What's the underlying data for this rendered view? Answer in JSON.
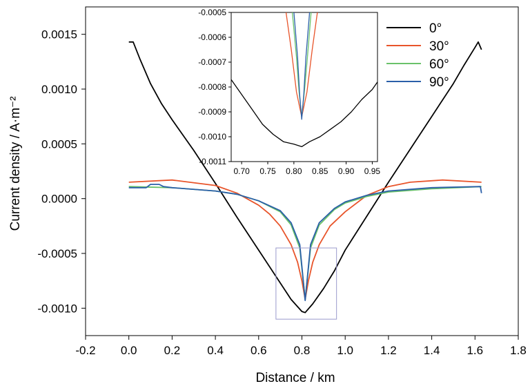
{
  "chart_data": [
    {
      "type": "line",
      "xlabel": "Distance / km",
      "ylabel": "Current density / A·m⁻²",
      "xlim": [
        -0.2,
        1.8
      ],
      "ylim": [
        -0.00125,
        0.00175
      ],
      "xticks": [
        "-0.2",
        "0.0",
        "0.2",
        "0.4",
        "0.6",
        "0.8",
        "1.0",
        "1.2",
        "1.4",
        "1.6",
        "1.8"
      ],
      "yticks": [
        "0.0015",
        "0.0010",
        "0.0005",
        "0.0000",
        "-0.0005",
        "-0.0010"
      ],
      "legend_position": "top-right",
      "grid": false,
      "series": [
        {
          "name": "0°",
          "color": "#000000",
          "x": [
            0.0,
            0.02,
            0.05,
            0.1,
            0.15,
            0.2,
            0.3,
            0.4,
            0.5,
            0.6,
            0.7,
            0.75,
            0.8,
            0.815,
            0.85,
            0.9,
            0.95,
            1.0,
            1.1,
            1.2,
            1.3,
            1.4,
            1.5,
            1.55,
            1.6,
            1.615,
            1.63
          ],
          "y": [
            0.00143,
            0.00143,
            0.00128,
            0.00105,
            0.00087,
            0.00072,
            0.00044,
            0.00014,
            -0.00017,
            -0.00047,
            -0.00077,
            -0.00092,
            -0.00103,
            -0.00104,
            -0.00096,
            -0.00082,
            -0.00066,
            -0.00047,
            -0.00016,
            0.00015,
            0.00045,
            0.00075,
            0.00105,
            0.00122,
            0.00138,
            0.00143,
            0.00136
          ]
        },
        {
          "name": "30°",
          "color": "#e8542a",
          "x": [
            0.0,
            0.2,
            0.4,
            0.5,
            0.6,
            0.65,
            0.7,
            0.75,
            0.78,
            0.8,
            0.815,
            0.83,
            0.85,
            0.88,
            0.93,
            1.0,
            1.1,
            1.2,
            1.3,
            1.45,
            1.63
          ],
          "y": [
            0.00015,
            0.00017,
            0.00012,
            5e-05,
            -6e-05,
            -0.00014,
            -0.00025,
            -0.00042,
            -0.00058,
            -0.00075,
            -0.00092,
            -0.00075,
            -0.00058,
            -0.00042,
            -0.00025,
            -0.00012,
            3e-05,
            0.00011,
            0.00015,
            0.00017,
            0.00015
          ]
        },
        {
          "name": "60°",
          "color": "#6ac26a",
          "x": [
            0.0,
            0.2,
            0.4,
            0.5,
            0.6,
            0.7,
            0.75,
            0.79,
            0.815,
            0.84,
            0.88,
            0.95,
            1.0,
            1.1,
            1.2,
            1.4,
            1.63
          ],
          "y": [
            0.00011,
            0.0001,
            7e-05,
            4e-05,
            -2e-05,
            -0.00012,
            -0.00024,
            -0.00045,
            -0.00092,
            -0.00045,
            -0.00024,
            -0.0001,
            -4e-05,
            2e-05,
            6e-05,
            9e-05,
            0.00011
          ]
        },
        {
          "name": "90°",
          "color": "#2a5fa8",
          "x": [
            0.0,
            0.08,
            0.1,
            0.12,
            0.14,
            0.16,
            0.2,
            0.4,
            0.5,
            0.6,
            0.7,
            0.75,
            0.79,
            0.815,
            0.84,
            0.88,
            0.95,
            1.0,
            1.1,
            1.2,
            1.4,
            1.625,
            1.63
          ],
          "y": [
            0.0001,
            0.0001,
            0.00013,
            0.00013,
            0.00013,
            0.00011,
            0.0001,
            7e-05,
            4e-05,
            -2e-05,
            -0.00011,
            -0.00022,
            -0.00042,
            -0.00093,
            -0.00042,
            -0.00022,
            -9e-05,
            -3e-05,
            3e-05,
            7e-05,
            0.0001,
            0.00011,
            5e-05
          ]
        }
      ]
    },
    {
      "type": "line",
      "xlim": [
        0.68,
        0.96
      ],
      "ylim": [
        -0.0011,
        -0.0005
      ],
      "xticks": [
        "0.70",
        "0.75",
        "0.80",
        "0.85",
        "0.90",
        "0.95"
      ],
      "yticks": [
        "-0.0005",
        "-0.0006",
        "-0.0007",
        "-0.0008",
        "-0.0009",
        "-0.0010",
        "-0.0011"
      ],
      "series": [
        {
          "name": "0°",
          "color": "#000000",
          "x": [
            0.68,
            0.7,
            0.72,
            0.74,
            0.76,
            0.78,
            0.8,
            0.815,
            0.83,
            0.85,
            0.87,
            0.89,
            0.91,
            0.93,
            0.95,
            0.96
          ],
          "y": [
            -0.00077,
            -0.00083,
            -0.00089,
            -0.00095,
            -0.00099,
            -0.00102,
            -0.00103,
            -0.00104,
            -0.00102,
            -0.001,
            -0.00097,
            -0.00094,
            -0.0009,
            -0.00085,
            -0.00081,
            -0.00078
          ]
        },
        {
          "name": "30°",
          "color": "#e8542a",
          "x": [
            0.785,
            0.795,
            0.805,
            0.815,
            0.825,
            0.835,
            0.845
          ],
          "y": [
            -0.0005,
            -0.00065,
            -0.00082,
            -0.00092,
            -0.00082,
            -0.00065,
            -0.0005
          ]
        },
        {
          "name": "60°",
          "color": "#6ac26a",
          "x": [
            0.797,
            0.805,
            0.81,
            0.815,
            0.82,
            0.826,
            0.833
          ],
          "y": [
            -0.0005,
            -0.00068,
            -0.00082,
            -0.00092,
            -0.00082,
            -0.00068,
            -0.0005
          ]
        },
        {
          "name": "90°",
          "color": "#2a5fa8",
          "x": [
            0.8,
            0.807,
            0.811,
            0.815,
            0.819,
            0.823,
            0.83
          ],
          "y": [
            -0.0005,
            -0.00068,
            -0.00083,
            -0.00093,
            -0.00083,
            -0.00068,
            -0.0005
          ]
        }
      ]
    }
  ],
  "colors": {
    "axis": "#000000",
    "zoom_box": "#9a9acc"
  }
}
